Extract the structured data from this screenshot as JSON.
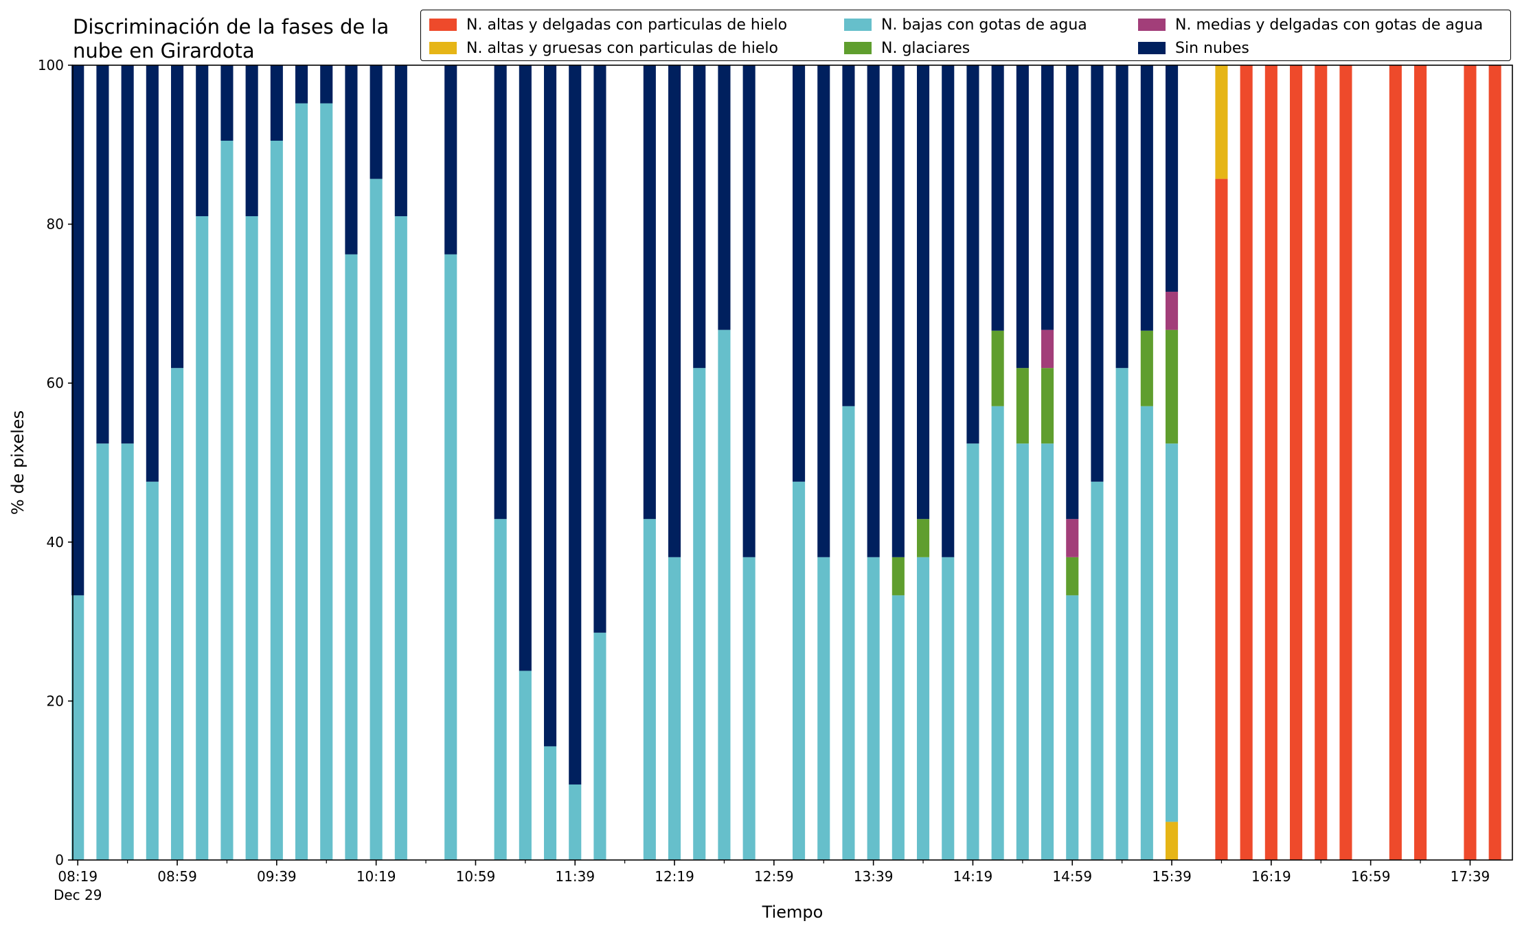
{
  "title_lines": [
    "Discriminación de la fases de la",
    "nube en Girardota"
  ],
  "chart_data": {
    "type": "bar",
    "stacked": true,
    "title": "Discriminación de la fases de la nube en Girardota",
    "xlabel": "Tiempo",
    "ylabel": "% de pixeles",
    "ylim": [
      0,
      100
    ],
    "yticks": [
      0,
      20,
      40,
      60,
      80,
      100
    ],
    "x_tick_labels": [
      "08:19",
      "08:59",
      "09:39",
      "10:19",
      "10:59",
      "11:39",
      "12:19",
      "12:59",
      "13:39",
      "14:19",
      "14:59",
      "15:39",
      "16:19",
      "16:59",
      "17:39"
    ],
    "x_date_label": "Dec 29",
    "x_start": "08:19",
    "x_end": "17:54",
    "bar_interval_minutes": 10,
    "grid": false,
    "legend_position": "top-right",
    "series": [
      {
        "name": "N. altas y delgadas con particulas de hielo",
        "color": "#ee4a2b"
      },
      {
        "name": "N. altas y gruesas con particulas de hielo",
        "color": "#e6b516"
      },
      {
        "name": "N. bajas con gotas de agua",
        "color": "#66bfcb"
      },
      {
        "name": "N. glaciares",
        "color": "#5f9e2e"
      },
      {
        "name": "N. medias y delgadas con gotas de agua",
        "color": "#a23e79"
      },
      {
        "name": "Sin nubes",
        "color": "#00205e"
      }
    ],
    "bars": [
      {
        "time": "08:19",
        "segments": {
          "N. bajas con gotas de agua": 33.3,
          "Sin nubes": 66.7
        }
      },
      {
        "time": "08:29",
        "segments": {
          "N. bajas con gotas de agua": 52.4,
          "Sin nubes": 47.6
        }
      },
      {
        "time": "08:39",
        "segments": {
          "N. bajas con gotas de agua": 52.4,
          "Sin nubes": 47.6
        }
      },
      {
        "time": "08:49",
        "segments": {
          "N. bajas con gotas de agua": 47.6,
          "Sin nubes": 52.4
        }
      },
      {
        "time": "08:59",
        "segments": {
          "N. bajas con gotas de agua": 61.9,
          "Sin nubes": 38.1
        }
      },
      {
        "time": "09:09",
        "segments": {
          "N. bajas con gotas de agua": 81.0,
          "Sin nubes": 19.0
        }
      },
      {
        "time": "09:19",
        "segments": {
          "N. bajas con gotas de agua": 90.5,
          "Sin nubes": 9.5
        }
      },
      {
        "time": "09:29",
        "segments": {
          "N. bajas con gotas de agua": 81.0,
          "Sin nubes": 19.0
        }
      },
      {
        "time": "09:39",
        "segments": {
          "N. bajas con gotas de agua": 90.5,
          "Sin nubes": 9.5
        }
      },
      {
        "time": "09:49",
        "segments": {
          "N. bajas con gotas de agua": 95.2,
          "Sin nubes": 4.8
        }
      },
      {
        "time": "09:59",
        "segments": {
          "N. bajas con gotas de agua": 95.2,
          "Sin nubes": 4.8
        }
      },
      {
        "time": "10:09",
        "segments": {
          "N. bajas con gotas de agua": 76.2,
          "Sin nubes": 23.8
        }
      },
      {
        "time": "10:19",
        "segments": {
          "N. bajas con gotas de agua": 85.7,
          "Sin nubes": 14.3
        }
      },
      {
        "time": "10:29",
        "segments": {
          "N. bajas con gotas de agua": 81.0,
          "Sin nubes": 19.0
        }
      },
      {
        "time": "10:49",
        "segments": {
          "N. bajas con gotas de agua": 76.2,
          "Sin nubes": 23.8
        }
      },
      {
        "time": "11:09",
        "segments": {
          "N. bajas con gotas de agua": 42.9,
          "Sin nubes": 57.1
        }
      },
      {
        "time": "11:19",
        "segments": {
          "N. bajas con gotas de agua": 23.8,
          "Sin nubes": 76.2
        }
      },
      {
        "time": "11:29",
        "segments": {
          "N. bajas con gotas de agua": 14.3,
          "Sin nubes": 85.7
        }
      },
      {
        "time": "11:39",
        "segments": {
          "N. bajas con gotas de agua": 9.5,
          "Sin nubes": 90.5
        }
      },
      {
        "time": "11:49",
        "segments": {
          "N. bajas con gotas de agua": 28.6,
          "Sin nubes": 71.4
        }
      },
      {
        "time": "12:09",
        "segments": {
          "N. bajas con gotas de agua": 42.9,
          "Sin nubes": 57.1
        }
      },
      {
        "time": "12:19",
        "segments": {
          "N. bajas con gotas de agua": 38.1,
          "Sin nubes": 61.9
        }
      },
      {
        "time": "12:29",
        "segments": {
          "N. bajas con gotas de agua": 61.9,
          "Sin nubes": 38.1
        }
      },
      {
        "time": "12:39",
        "segments": {
          "N. bajas con gotas de agua": 66.7,
          "Sin nubes": 33.3
        }
      },
      {
        "time": "12:49",
        "segments": {
          "N. bajas con gotas de agua": 38.1,
          "Sin nubes": 61.9
        }
      },
      {
        "time": "13:09",
        "segments": {
          "N. bajas con gotas de agua": 47.6,
          "Sin nubes": 52.4
        }
      },
      {
        "time": "13:19",
        "segments": {
          "N. bajas con gotas de agua": 38.1,
          "Sin nubes": 61.9
        }
      },
      {
        "time": "13:29",
        "segments": {
          "N. bajas con gotas de agua": 57.1,
          "Sin nubes": 42.9
        }
      },
      {
        "time": "13:39",
        "segments": {
          "N. bajas con gotas de agua": 38.1,
          "Sin nubes": 61.9
        }
      },
      {
        "time": "13:49",
        "segments": {
          "N. bajas con gotas de agua": 33.3,
          "N. glaciares": 4.8,
          "Sin nubes": 61.9
        }
      },
      {
        "time": "13:59",
        "segments": {
          "N. bajas con gotas de agua": 38.1,
          "N. glaciares": 4.8,
          "Sin nubes": 57.1
        }
      },
      {
        "time": "14:09",
        "segments": {
          "N. bajas con gotas de agua": 38.1,
          "Sin nubes": 61.9
        }
      },
      {
        "time": "14:19",
        "segments": {
          "N. bajas con gotas de agua": 52.4,
          "Sin nubes": 47.6
        }
      },
      {
        "time": "14:29",
        "segments": {
          "N. bajas con gotas de agua": 57.1,
          "N. glaciares": 9.5,
          "Sin nubes": 33.4
        }
      },
      {
        "time": "14:39",
        "segments": {
          "N. bajas con gotas de agua": 52.4,
          "N. glaciares": 9.5,
          "Sin nubes": 38.1
        }
      },
      {
        "time": "14:49",
        "segments": {
          "N. bajas con gotas de agua": 52.4,
          "N. glaciares": 9.5,
          "N. medias y delgadas con gotas de agua": 4.8,
          "Sin nubes": 33.3
        }
      },
      {
        "time": "14:59",
        "segments": {
          "N. bajas con gotas de agua": 33.3,
          "N. glaciares": 4.8,
          "N. medias y delgadas con gotas de agua": 4.8,
          "Sin nubes": 57.1
        }
      },
      {
        "time": "15:09",
        "segments": {
          "N. bajas con gotas de agua": 47.6,
          "Sin nubes": 52.4
        }
      },
      {
        "time": "15:19",
        "segments": {
          "N. bajas con gotas de agua": 61.9,
          "Sin nubes": 38.1
        }
      },
      {
        "time": "15:29",
        "segments": {
          "N. bajas con gotas de agua": 57.1,
          "N. glaciares": 9.5,
          "Sin nubes": 33.4
        }
      },
      {
        "time": "15:39",
        "segments": {
          "N. altas y gruesas con particulas de hielo": 4.8,
          "N. bajas con gotas de agua": 47.6,
          "N. glaciares": 14.3,
          "N. medias y delgadas con gotas de agua": 4.8,
          "Sin nubes": 28.5
        }
      },
      {
        "time": "15:59",
        "segments": {
          "N. altas y delgadas con particulas de hielo": 85.7,
          "N. altas y gruesas con particulas de hielo": 14.3
        }
      },
      {
        "time": "16:09",
        "segments": {
          "N. altas y delgadas con particulas de hielo": 100
        }
      },
      {
        "time": "16:19",
        "segments": {
          "N. altas y delgadas con particulas de hielo": 100
        }
      },
      {
        "time": "16:29",
        "segments": {
          "N. altas y delgadas con particulas de hielo": 100
        }
      },
      {
        "time": "16:39",
        "segments": {
          "N. altas y delgadas con particulas de hielo": 100
        }
      },
      {
        "time": "16:49",
        "segments": {
          "N. altas y delgadas con particulas de hielo": 100
        }
      },
      {
        "time": "17:09",
        "segments": {
          "N. altas y delgadas con particulas de hielo": 100
        }
      },
      {
        "time": "17:19",
        "segments": {
          "N. altas y delgadas con particulas de hielo": 100
        }
      },
      {
        "time": "17:39",
        "segments": {
          "N. altas y delgadas con particulas de hielo": 100
        }
      },
      {
        "time": "17:49",
        "segments": {
          "N. altas y delgadas con particulas de hielo": 100
        }
      }
    ]
  }
}
